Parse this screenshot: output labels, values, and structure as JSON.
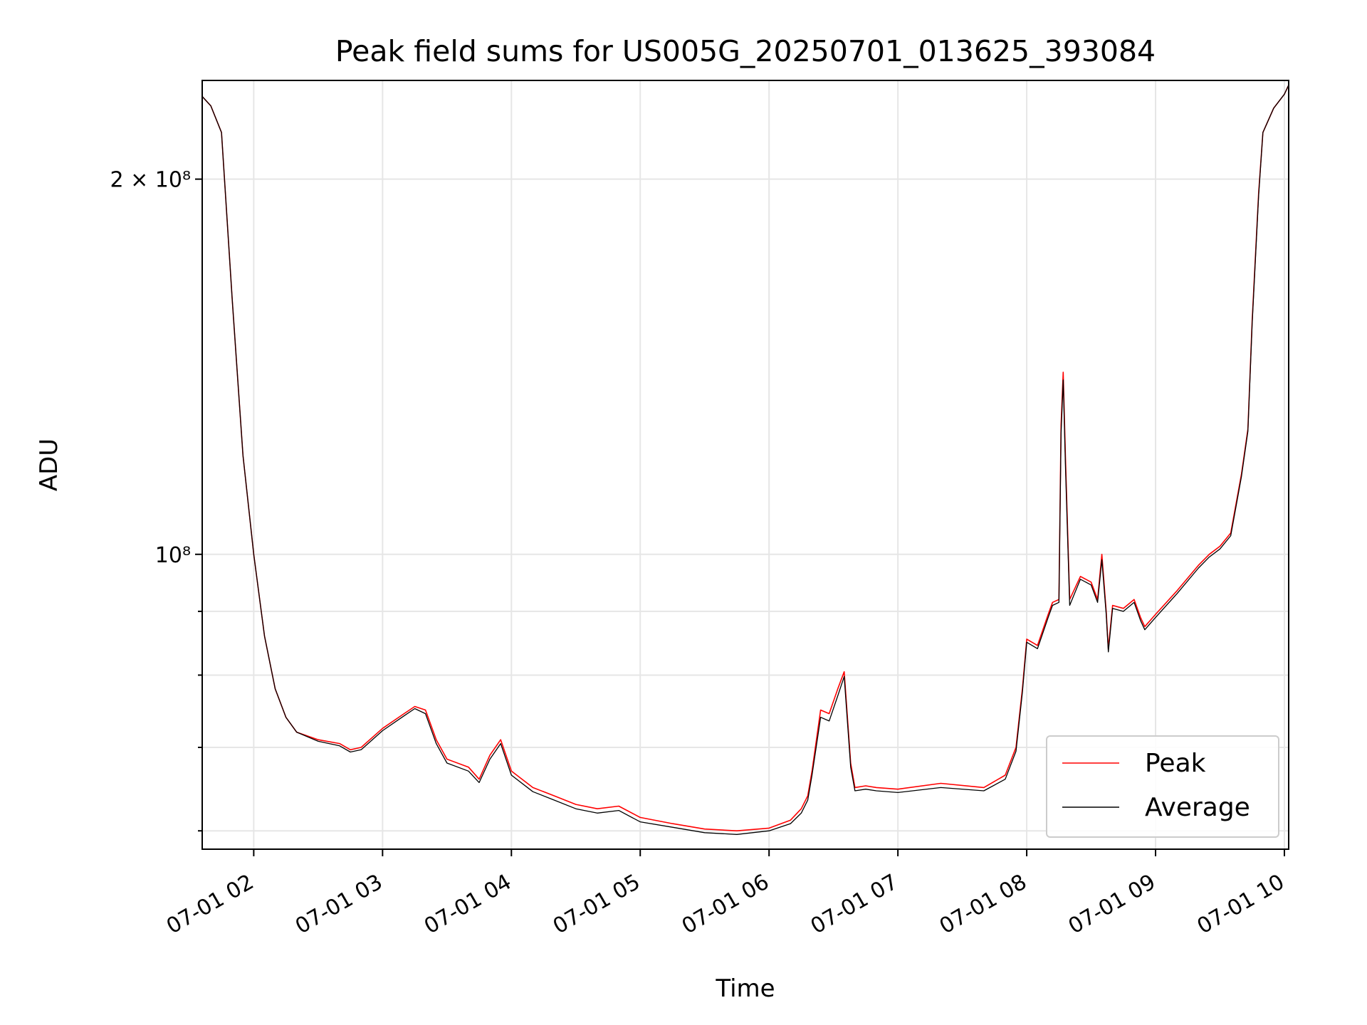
{
  "chart_data": {
    "type": "line",
    "title": "Peak field sums for US005G_20250701_013625_393084",
    "xlabel": "Time",
    "ylabel": "ADU",
    "x_unit": "date-time (2025-07-01, hours)",
    "xlim": [
      "07-01 01:36",
      "07-01 10:02"
    ],
    "ylim": [
      58000000,
      240000000
    ],
    "yscale": "log",
    "grid": true,
    "legend": "lower right",
    "x_ticks": [
      "07-01 02",
      "07-01 03",
      "07-01 04",
      "07-01 05",
      "07-01 06",
      "07-01 07",
      "07-01 08",
      "07-01 09",
      "07-01 10"
    ],
    "y_ticks": [
      {
        "value": 200000000,
        "label": "2 × 10⁸"
      },
      {
        "value": 100000000,
        "label": "10⁸"
      }
    ],
    "y_minor_ticks": [
      60000000,
      70000000,
      80000000,
      90000000
    ],
    "x": [
      "01:36",
      "01:40",
      "01:45",
      "01:50",
      "01:55",
      "02:00",
      "02:05",
      "02:10",
      "02:15",
      "02:20",
      "02:30",
      "02:40",
      "02:45",
      "02:50",
      "03:00",
      "03:10",
      "03:15",
      "03:20",
      "03:25",
      "03:30",
      "03:40",
      "03:45",
      "03:50",
      "03:55",
      "04:00",
      "04:10",
      "04:20",
      "04:30",
      "04:40",
      "04:50",
      "05:00",
      "05:15",
      "05:30",
      "05:45",
      "06:00",
      "06:10",
      "06:15",
      "06:18",
      "06:20",
      "06:24",
      "06:28",
      "06:32",
      "06:35",
      "06:38",
      "06:40",
      "06:45",
      "06:50",
      "07:00",
      "07:20",
      "07:40",
      "07:50",
      "07:55",
      "07:58",
      "08:00",
      "08:05",
      "08:10",
      "08:12",
      "08:15",
      "08:16",
      "08:17",
      "08:18",
      "08:20",
      "08:25",
      "08:30",
      "08:33",
      "08:35",
      "08:37",
      "08:38",
      "08:40",
      "08:45",
      "08:50",
      "08:53",
      "08:55",
      "09:00",
      "09:10",
      "09:20",
      "09:25",
      "09:30",
      "09:35",
      "09:40",
      "09:43",
      "09:45",
      "09:48",
      "09:50",
      "09:55",
      "10:00",
      "10:02"
    ],
    "series": [
      {
        "name": "Peak",
        "color": "#ff0000",
        "values": [
          233000000,
          229000000,
          218000000,
          160000000,
          120000000,
          100000000,
          86000000,
          78000000,
          74000000,
          72000000,
          71000000,
          70500000,
          69700000,
          70000000,
          72500000,
          74500000,
          75500000,
          75000000,
          71000000,
          68500000,
          67500000,
          66000000,
          69000000,
          71000000,
          67000000,
          65000000,
          64000000,
          63000000,
          62500000,
          62800000,
          61500000,
          60800000,
          60200000,
          60000000,
          60300000,
          61200000,
          62500000,
          64000000,
          67000000,
          75000000,
          74500000,
          78000000,
          80500000,
          68000000,
          65000000,
          65200000,
          65000000,
          64800000,
          65500000,
          65000000,
          66500000,
          70000000,
          78000000,
          85500000,
          84500000,
          89500000,
          91500000,
          92000000,
          127000000,
          140000000,
          120000000,
          92000000,
          96000000,
          95000000,
          92000000,
          100000000,
          90000000,
          84000000,
          91000000,
          90500000,
          92000000,
          89000000,
          87500000,
          89500000,
          93500000,
          98000000,
          100000000,
          101500000,
          104000000,
          116000000,
          126000000,
          154000000,
          195000000,
          218000000,
          228000000,
          234000000,
          238000000
        ]
      },
      {
        "name": "Average",
        "color": "#000000",
        "values": [
          233000000,
          229000000,
          218000000,
          160000000,
          120000000,
          100000000,
          86000000,
          78000000,
          74000000,
          72000000,
          70800000,
          70200000,
          69400000,
          69700000,
          72200000,
          74200000,
          75200000,
          74500000,
          70500000,
          68000000,
          67000000,
          65600000,
          68500000,
          70500000,
          66500000,
          64500000,
          63500000,
          62500000,
          62000000,
          62300000,
          61000000,
          60400000,
          59800000,
          59600000,
          60000000,
          60800000,
          62000000,
          63500000,
          66500000,
          74000000,
          73500000,
          77000000,
          79800000,
          67500000,
          64600000,
          64800000,
          64600000,
          64400000,
          65000000,
          64600000,
          66000000,
          69500000,
          77500000,
          85000000,
          84000000,
          89000000,
          91000000,
          91500000,
          125000000,
          138000000,
          118000000,
          91000000,
          95500000,
          94500000,
          91500000,
          99000000,
          89500000,
          83500000,
          90500000,
          90000000,
          91500000,
          88500000,
          87000000,
          89000000,
          93000000,
          97500000,
          99500000,
          101000000,
          103500000,
          115500000,
          125500000,
          153000000,
          194000000,
          218000000,
          228000000,
          234000000,
          238000000
        ]
      }
    ]
  }
}
